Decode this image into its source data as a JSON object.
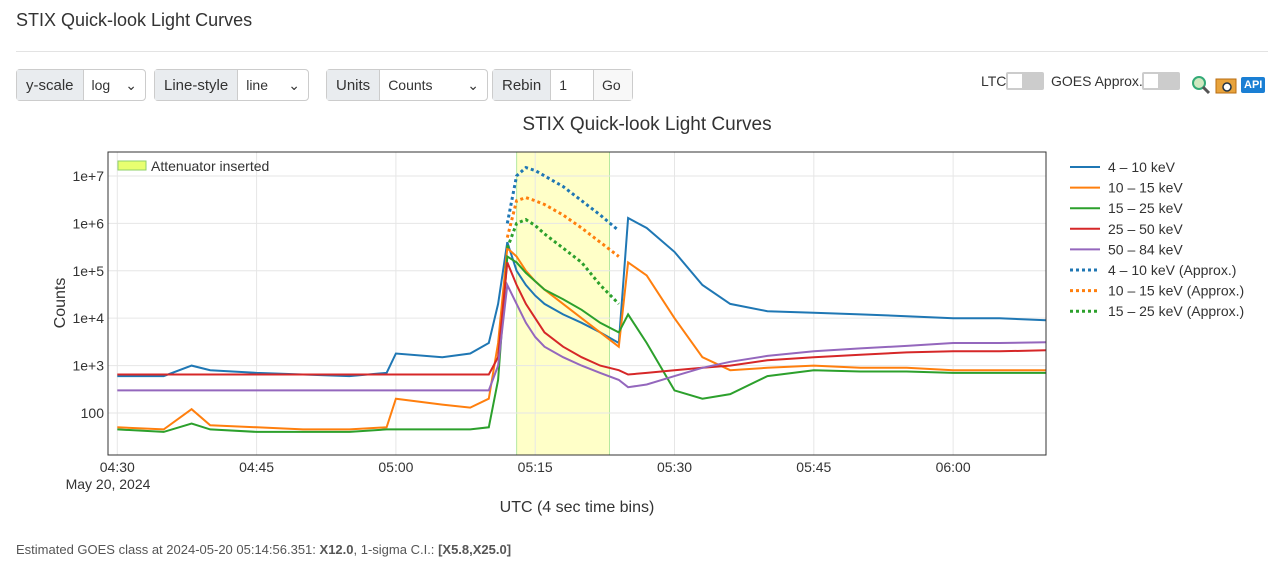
{
  "header": {
    "title": "STIX Quick-look Light Curves"
  },
  "controls": {
    "yscale": {
      "label": "y-scale",
      "value": "log"
    },
    "linestyle": {
      "label": "Line-style",
      "value": "line"
    },
    "units": {
      "label": "Units",
      "value": "Counts"
    },
    "rebin": {
      "label": "Rebin",
      "value": "1",
      "button": "Go"
    },
    "ltc": "LTC",
    "goes": "GOES Approx.",
    "api": "API"
  },
  "chart_data": {
    "type": "line",
    "title": "STIX Quick-look Light Curves",
    "xlabel": "UTC (4 sec time bins)",
    "ylabel": "Counts",
    "x_date": "May 20, 2024",
    "log_y": true,
    "grid": true,
    "attenuator": {
      "label": "Attenuator inserted",
      "start": "05:13",
      "end": "05:23",
      "color": "#ffffc8"
    },
    "xlim": [
      "04:29",
      "06:10"
    ],
    "xticks": [
      "04:30",
      "04:45",
      "05:00",
      "05:15",
      "05:30",
      "05:45",
      "06:00"
    ],
    "ylim": [
      13,
      32000000
    ],
    "yticks": [
      100,
      {
        "value": 1000,
        "label": "1e+3"
      },
      {
        "value": 10000,
        "label": "1e+4"
      },
      {
        "value": 100000,
        "label": "1e+5"
      },
      {
        "value": 1000000,
        "label": "1e+6"
      },
      {
        "value": 10000000,
        "label": "1e+7"
      }
    ],
    "x": [
      "04:30",
      "04:35",
      "04:38",
      "04:40",
      "04:45",
      "04:50",
      "04:55",
      "04:59",
      "05:00",
      "05:05",
      "05:08",
      "05:10",
      "05:11",
      "05:12",
      "05:13",
      "05:14",
      "05:15",
      "05:16",
      "05:18",
      "05:20",
      "05:22",
      "05:24",
      "05:25",
      "05:27",
      "05:30",
      "05:33",
      "05:36",
      "05:40",
      "05:45",
      "05:50",
      "05:55",
      "06:00",
      "06:05",
      "06:10"
    ],
    "series": [
      {
        "name": "4 – 10 keV",
        "color": "#1f77b4",
        "style": "solid",
        "values": [
          600,
          600,
          1000,
          800,
          700,
          650,
          600,
          700,
          1800,
          1500,
          1800,
          3000,
          20000,
          400000,
          100000,
          50000,
          30000,
          20000,
          12000,
          8000,
          5000,
          3000,
          1300000,
          800000,
          250000,
          50000,
          20000,
          14000,
          13000,
          12000,
          11000,
          10000,
          10000,
          9000
        ]
      },
      {
        "name": "10 – 15 keV",
        "color": "#ff7f0e",
        "style": "solid",
        "values": [
          50,
          45,
          120,
          55,
          50,
          45,
          45,
          50,
          200,
          150,
          130,
          200,
          3000,
          300000,
          200000,
          100000,
          60000,
          40000,
          20000,
          10000,
          5000,
          2500,
          150000,
          80000,
          10000,
          1500,
          800,
          900,
          1000,
          900,
          900,
          800,
          800,
          800
        ]
      },
      {
        "name": "15 – 25 keV",
        "color": "#2ca02c",
        "style": "solid",
        "values": [
          45,
          40,
          60,
          45,
          40,
          40,
          40,
          45,
          45,
          45,
          45,
          50,
          500,
          200000,
          150000,
          90000,
          60000,
          40000,
          25000,
          15000,
          8000,
          5000,
          12000,
          3000,
          300,
          200,
          250,
          600,
          800,
          750,
          750,
          700,
          700,
          700
        ]
      },
      {
        "name": "25 – 50 keV",
        "color": "#d62728",
        "style": "solid",
        "values": [
          650,
          650,
          650,
          650,
          650,
          650,
          650,
          650,
          650,
          650,
          650,
          650,
          1500,
          150000,
          50000,
          20000,
          10000,
          5000,
          2500,
          1500,
          1000,
          800,
          650,
          700,
          800,
          900,
          1000,
          1300,
          1500,
          1700,
          1900,
          2000,
          2000,
          2100
        ]
      },
      {
        "name": "50 – 84 keV",
        "color": "#9467bd",
        "style": "solid",
        "values": [
          300,
          300,
          300,
          300,
          300,
          300,
          300,
          300,
          300,
          300,
          300,
          300,
          1000,
          50000,
          20000,
          8000,
          4000,
          2500,
          1500,
          1000,
          700,
          500,
          350,
          400,
          600,
          900,
          1200,
          1600,
          2000,
          2300,
          2600,
          3000,
          3000,
          3100
        ]
      },
      {
        "name": "4 – 10 keV (Approx.)",
        "color": "#1f77b4",
        "style": "dotted",
        "values": [
          null,
          null,
          null,
          null,
          null,
          null,
          null,
          null,
          null,
          null,
          null,
          null,
          null,
          1000000,
          10000000,
          15000000,
          13000000,
          10000000,
          6000000,
          3000000,
          1500000,
          700000,
          null,
          null,
          null,
          null,
          null,
          null,
          null,
          null,
          null,
          null,
          null,
          null
        ]
      },
      {
        "name": "10 – 15 keV (Approx.)",
        "color": "#ff7f0e",
        "style": "dotted",
        "values": [
          null,
          null,
          null,
          null,
          null,
          null,
          null,
          null,
          null,
          null,
          null,
          null,
          null,
          500000,
          3000000,
          3500000,
          3000000,
          2500000,
          1500000,
          800000,
          400000,
          200000,
          null,
          null,
          null,
          null,
          null,
          null,
          null,
          null,
          null,
          null,
          null,
          null
        ]
      },
      {
        "name": "15 – 25 keV (Approx.)",
        "color": "#2ca02c",
        "style": "dotted",
        "values": [
          null,
          null,
          null,
          null,
          null,
          null,
          null,
          null,
          null,
          null,
          null,
          null,
          null,
          300000,
          1000000,
          1200000,
          900000,
          600000,
          300000,
          150000,
          50000,
          20000,
          null,
          null,
          null,
          null,
          null,
          null,
          null,
          null,
          null,
          null,
          null,
          null
        ]
      }
    ]
  },
  "footer": {
    "prefix": "Estimated GOES class at 2024-05-20 05:14:56.351:",
    "class": "X12.0",
    "ci_label": ", 1-sigma C.I.:",
    "ci": "[X5.8,X25.0]"
  }
}
